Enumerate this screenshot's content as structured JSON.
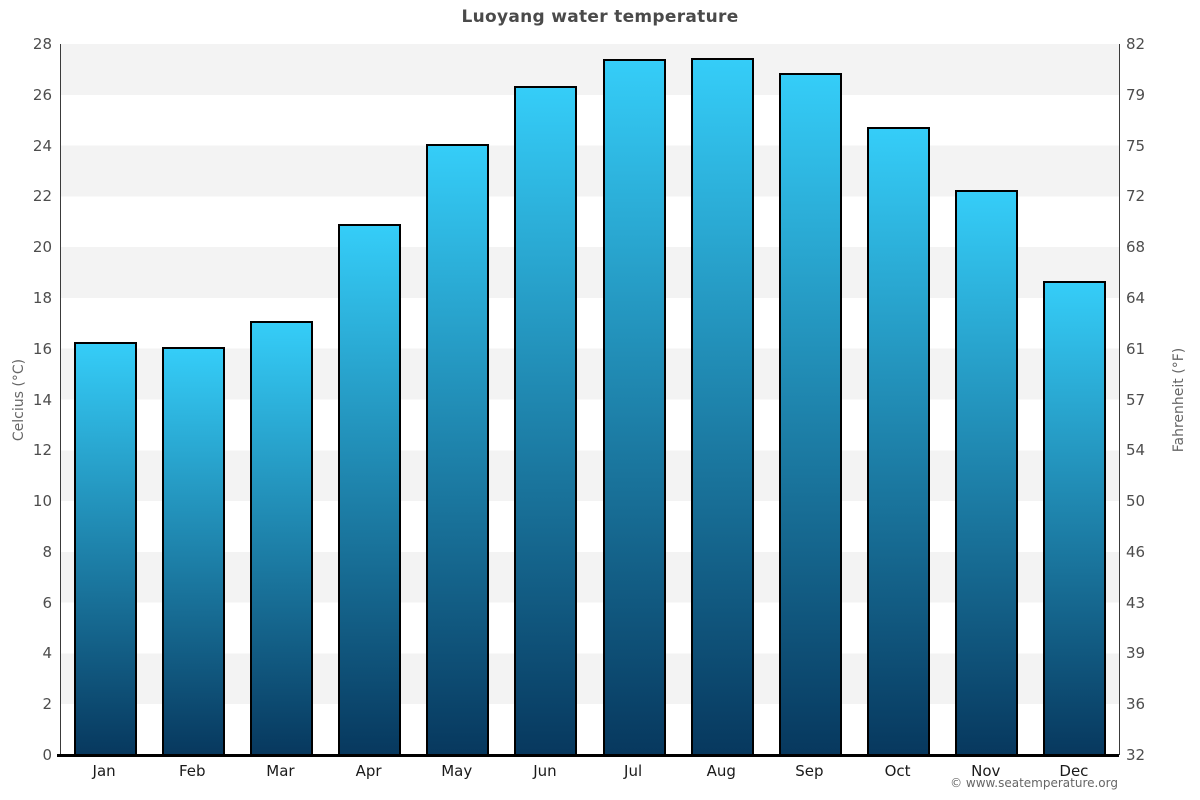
{
  "title": "Luoyang water temperature",
  "credit": "© www.seatemperature.org",
  "axes": {
    "left_label": "Celcius (°C)",
    "right_label": "Fahrenheit (°F)"
  },
  "chart_data": {
    "type": "bar",
    "title": "Luoyang water temperature",
    "categories": [
      "Jan",
      "Feb",
      "Mar",
      "Apr",
      "May",
      "Jun",
      "Jul",
      "Aug",
      "Sep",
      "Oct",
      "Nov",
      "Dec"
    ],
    "values": [
      16.25,
      16.05,
      17.1,
      20.9,
      24.05,
      26.35,
      27.4,
      27.45,
      26.85,
      24.75,
      22.25,
      18.65
    ],
    "xlabel": "",
    "ylabel": "Celcius (°C)",
    "ylabel_right": "Fahrenheit (°F)",
    "ylim": [
      0,
      28
    ],
    "yticks_left": [
      0,
      2,
      4,
      6,
      8,
      10,
      12,
      14,
      16,
      18,
      20,
      22,
      24,
      26,
      28
    ],
    "yticks_right": [
      "32",
      "36",
      "39",
      "43",
      "46",
      "50",
      "54",
      "57",
      "61",
      "64",
      "68",
      "72",
      "75",
      "79",
      "82"
    ],
    "grid": "horizontal-bands-every-2C",
    "legend": "none",
    "colors": {
      "bar_gradient_top": "#35CDF8",
      "bar_gradient_bottom": "#07385E",
      "bar_border": "#000000",
      "band_gray": "#f3f3f3",
      "band_white": "#ffffff",
      "title_text": "#4a4a4a",
      "tick_text": "#4d4d4d",
      "axis_label_text": "#666666",
      "credit_text": "#666666"
    }
  }
}
